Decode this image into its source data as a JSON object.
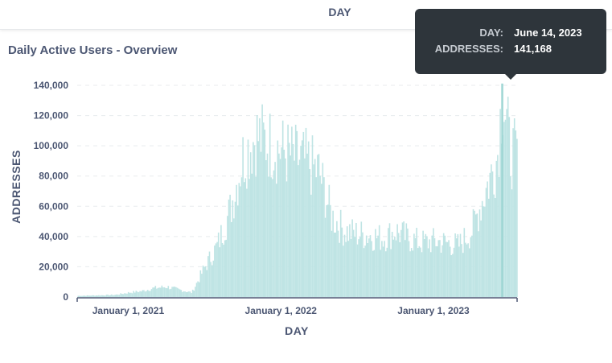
{
  "header": {
    "axis_label": "DAY"
  },
  "card": {
    "title": "Daily Active Users - Overview"
  },
  "tooltip": {
    "rows": [
      {
        "key": "DAY:",
        "value": "June 14, 2023"
      },
      {
        "key": "ADDRESSES:",
        "value": "141,168"
      }
    ]
  },
  "colors": {
    "bar": "#bfe4e4",
    "highlight": "#9fd6d4",
    "grid": "#e8ebee",
    "text": "#4c5773"
  },
  "chart_data": {
    "type": "bar",
    "xlabel": "DAY",
    "ylabel": "ADDRESSES",
    "xlim": [
      "2020-09-01",
      "2023-07-20"
    ],
    "ylim": [
      0,
      140000
    ],
    "y_ticks": [
      "0",
      "20,000",
      "40,000",
      "60,000",
      "80,000",
      "100,000",
      "120,000",
      "140,000"
    ],
    "x_ticks": [
      {
        "date": "2021-01-01",
        "label": "January 1, 2021"
      },
      {
        "date": "2022-01-01",
        "label": "January 1, 2022"
      },
      {
        "date": "2023-01-01",
        "label": "January 1, 2023"
      }
    ],
    "grid": true,
    "series": [
      {
        "values": [
          [
            "2020-09-01",
            800
          ],
          [
            "2020-10-01",
            1000
          ],
          [
            "2020-11-01",
            1200
          ],
          [
            "2020-12-01",
            1500
          ],
          [
            "2021-01-01",
            3000
          ],
          [
            "2021-02-01",
            4000
          ],
          [
            "2021-03-01",
            6000
          ],
          [
            "2021-04-01",
            7000
          ],
          [
            "2021-05-01",
            5000
          ],
          [
            "2021-06-01",
            3000
          ],
          [
            "2021-07-01",
            20000
          ],
          [
            "2021-08-01",
            35000
          ],
          [
            "2021-09-01",
            60000
          ],
          [
            "2021-10-01",
            95000
          ],
          [
            "2021-11-01",
            110000
          ],
          [
            "2021-12-01",
            105000
          ],
          [
            "2022-01-01",
            100000
          ],
          [
            "2022-02-01",
            95000
          ],
          [
            "2022-03-01",
            92000
          ],
          [
            "2022-04-01",
            85000
          ],
          [
            "2022-05-01",
            55000
          ],
          [
            "2022-06-01",
            45000
          ],
          [
            "2022-07-01",
            43000
          ],
          [
            "2022-08-01",
            42000
          ],
          [
            "2022-09-01",
            40000
          ],
          [
            "2022-10-01",
            45000
          ],
          [
            "2022-11-01",
            40000
          ],
          [
            "2022-12-01",
            37000
          ],
          [
            "2023-01-01",
            38000
          ],
          [
            "2023-02-01",
            37000
          ],
          [
            "2023-03-01",
            35000
          ],
          [
            "2023-04-01",
            45000
          ],
          [
            "2023-05-01",
            70000
          ],
          [
            "2023-06-01",
            95000
          ],
          [
            "2023-06-14",
            141168
          ],
          [
            "2023-07-01",
            100000
          ],
          [
            "2023-07-20",
            95000
          ]
        ]
      }
    ],
    "highlight": {
      "date": "2023-06-14",
      "value": 141168
    }
  }
}
